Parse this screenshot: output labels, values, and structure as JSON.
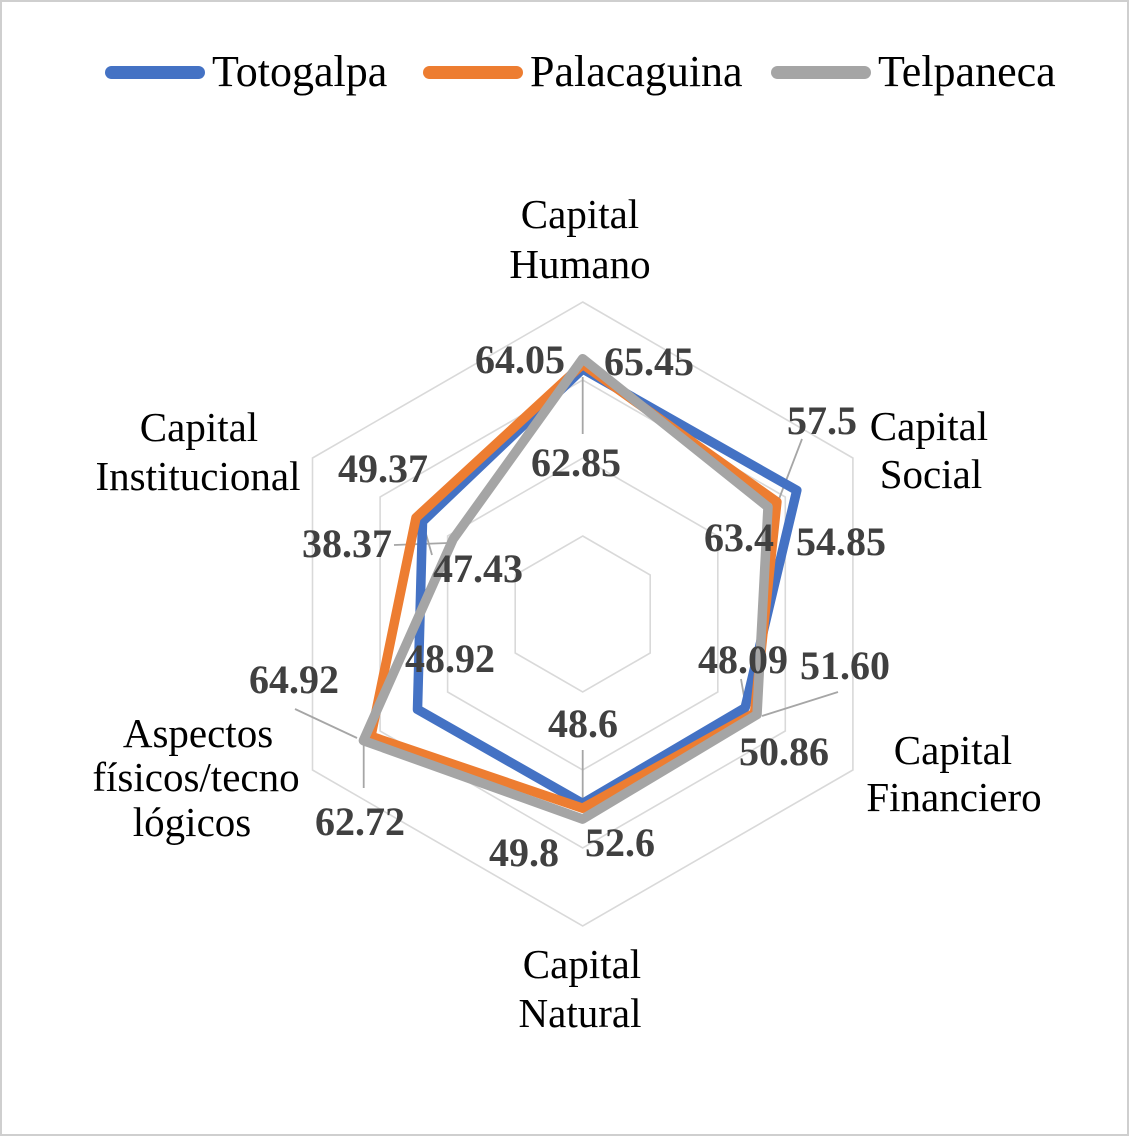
{
  "legend": {
    "items": [
      {
        "label": "Totogalpa",
        "color": "#4472C4"
      },
      {
        "label": "Palacaguina",
        "color": "#ED7D31"
      },
      {
        "label": "Telpaneca",
        "color": "#A5A5A5"
      }
    ]
  },
  "chart_data": {
    "type": "radar",
    "title": "",
    "categories": [
      "Capital Humano",
      "Capital Social",
      "Capital Financiero",
      "Capital Natural",
      "Aspectos físicos/tecnológicos",
      "Capital Institucional"
    ],
    "categories_lines": [
      [
        "Capital",
        "Humano"
      ],
      [
        "Capital",
        "Social"
      ],
      [
        "Capital",
        "Financiero"
      ],
      [
        "Capital",
        "Natural"
      ],
      [
        "Aspectos",
        "físicos/tecno",
        "lógicos"
      ],
      [
        "Capital",
        "Institucional"
      ]
    ],
    "axis": {
      "min": 0,
      "max": 80,
      "ring_interval": 20,
      "rings": [
        20,
        40,
        60,
        80
      ],
      "tick_labels_visible": false,
      "grid_color": "#D9D9D9",
      "grid": "on"
    },
    "legend_position": "top",
    "series": [
      {
        "name": "Totogalpa",
        "color": "#4472C4",
        "values": [
          "62.85",
          "63.4",
          "48.09",
          "48.6",
          "48.92",
          "47.43"
        ]
      },
      {
        "name": "Palacaguina",
        "color": "#ED7D31",
        "values": [
          "64.05",
          "57.5",
          "50.86",
          "49.8",
          "62.72",
          "49.37"
        ]
      },
      {
        "name": "Telpaneca",
        "color": "#A5A5A5",
        "values": [
          "65.45",
          "54.85",
          "51.60",
          "52.6",
          "64.92",
          "38.37"
        ]
      }
    ]
  }
}
